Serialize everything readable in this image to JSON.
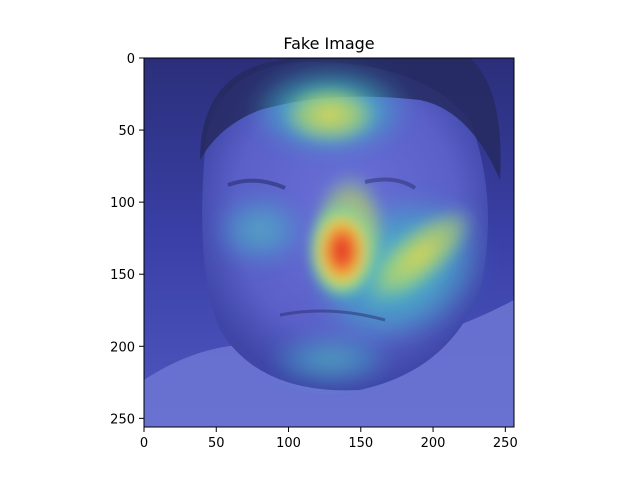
{
  "chart_data": {
    "type": "heatmap",
    "title": "Fake Image",
    "xlabel": "",
    "ylabel": "",
    "xlim": [
      0,
      256
    ],
    "ylim": [
      256,
      0
    ],
    "xticks": [
      0,
      50,
      100,
      150,
      200,
      250
    ],
    "yticks": [
      0,
      50,
      100,
      150,
      200,
      250
    ],
    "grid": false,
    "colormap": "jet",
    "overlay": "grad-cam heatmap over face image",
    "hotspot": {
      "x": 137,
      "y": 131
    },
    "colors": {
      "background": "#2a2f8a",
      "cold": "#3d44c8",
      "cool": "#38b9c4",
      "warm": "#e8d64a",
      "hot": "#e8342a"
    }
  }
}
